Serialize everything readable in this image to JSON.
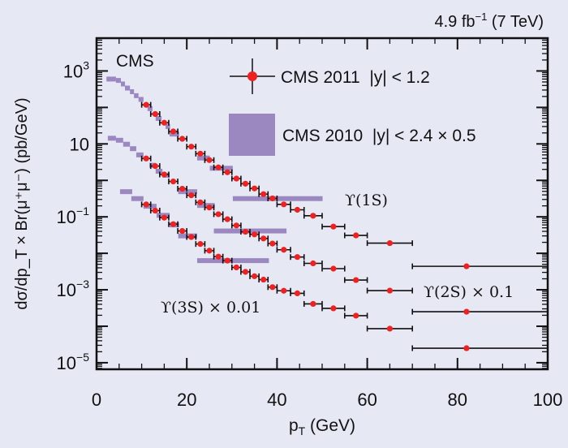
{
  "header": {
    "lumi": "4.9 fb",
    "lumi_exp": "−1",
    "energy": " (7 TeV)"
  },
  "colors": {
    "background": "#e6e8f4",
    "cms2011": "#ee2020",
    "cms2010": "#9b88c0",
    "axis": "#111111"
  },
  "chart_data": {
    "type": "scatter",
    "title": "",
    "experiment_label": "CMS",
    "xlabel": "p",
    "xlabel_sub": "T",
    "xlabel_unit": " (GeV)",
    "ylabel": "dσ/dp_T × Br(μ⁺μ⁻) (pb/GeV)",
    "xlim": [
      0,
      100
    ],
    "ylim_log10": [
      -5.18,
      3.9
    ],
    "yscale": "log",
    "grid": false,
    "legend_placement": "top-center",
    "x_ticks": [
      "0",
      "20",
      "40",
      "60",
      "80",
      "100"
    ],
    "x_tick_values": [
      0,
      20,
      40,
      60,
      80,
      100
    ],
    "y_ticks": [
      {
        "base": "10",
        "exp": "3",
        "value_log10": 3
      },
      {
        "base": "10",
        "exp": "",
        "value_log10": 1
      },
      {
        "base": "10",
        "exp": "−1",
        "value_log10": -1
      },
      {
        "base": "10",
        "exp": "−3",
        "value_log10": -3
      },
      {
        "base": "10",
        "exp": "−5",
        "value_log10": -5
      }
    ],
    "legend": [
      {
        "label": "CMS 2011  |y| < 1.2",
        "style": "points"
      },
      {
        "label": "CMS 2010  |y| < 2.4 × 0.5",
        "style": "box"
      }
    ],
    "annotations": {
      "s1": "ϒ(1S)",
      "s2": "ϒ(2S) × 0.1",
      "s3": "ϒ(3S) × 0.01"
    },
    "bins_2011": [
      [
        10,
        12
      ],
      [
        12,
        14
      ],
      [
        14,
        16
      ],
      [
        16,
        18
      ],
      [
        18,
        20
      ],
      [
        20,
        22
      ],
      [
        22,
        24
      ],
      [
        24,
        26
      ],
      [
        26,
        28
      ],
      [
        28,
        30
      ],
      [
        30,
        32
      ],
      [
        32,
        34
      ],
      [
        34,
        36
      ],
      [
        36,
        38
      ],
      [
        38,
        40
      ],
      [
        40,
        43
      ],
      [
        43,
        46
      ],
      [
        46,
        50
      ],
      [
        50,
        55
      ],
      [
        55,
        60
      ],
      [
        60,
        70
      ],
      [
        70,
        100
      ]
    ],
    "x_2011": [
      11,
      13,
      15,
      17,
      19,
      21,
      23,
      25,
      27,
      29,
      31,
      33,
      35,
      37,
      39,
      41.5,
      44.5,
      48,
      52.5,
      57.5,
      65,
      82
    ],
    "series_2011": [
      {
        "name": "Upsilon(1S)",
        "values": [
          118,
          66,
          38,
          22,
          13.8,
          8.4,
          5.4,
          3.6,
          2.27,
          1.67,
          1.12,
          0.81,
          0.6,
          0.42,
          0.32,
          0.22,
          0.156,
          0.107,
          0.054,
          0.031,
          0.019,
          0.0044
        ]
      },
      {
        "name": "Upsilon(2S) x 0.1",
        "values": [
          3.98,
          2.47,
          1.45,
          0.935,
          0.59,
          0.39,
          0.25,
          0.18,
          0.118,
          0.086,
          0.058,
          0.039,
          0.033,
          0.0255,
          0.0185,
          0.0125,
          0.0079,
          0.0053,
          0.0038,
          0.00185,
          0.00095,
          0.00025
        ]
      },
      {
        "name": "Upsilon(3S) x 0.01",
        "values": [
          0.219,
          0.148,
          0.095,
          0.063,
          0.041,
          0.028,
          0.018,
          0.0118,
          0.0081,
          0.0063,
          0.0041,
          0.0031,
          0.00235,
          0.0019,
          0.00118,
          0.00094,
          0.0008,
          0.00041,
          0.00031,
          0.000195,
          8.6e-05,
          2.5e-05
        ]
      }
    ],
    "series_2010": [
      {
        "name": "Upsilon(1S) 2010",
        "boxes": [
          [
            2.2,
            4.3,
            600
          ],
          [
            4.3,
            5.4,
            550
          ],
          [
            5.4,
            6.3,
            440
          ],
          [
            6.3,
            7.4,
            340
          ],
          [
            7.4,
            8.3,
            270
          ],
          [
            8.3,
            9.3,
            210
          ],
          [
            9.3,
            10.4,
            166
          ],
          [
            11.3,
            12.4,
            93
          ],
          [
            13.1,
            14.4,
            50
          ],
          [
            15.3,
            16.3,
            30
          ],
          [
            16.2,
            18.3,
            18.6
          ],
          [
            22.3,
            25.1,
            4.1
          ],
          [
            25.1,
            30.2,
            2.15
          ],
          [
            30.2,
            50.1,
            0.316
          ]
        ]
      },
      {
        "name": "Upsilon(2S) 2010",
        "boxes": [
          [
            2.5,
            4.3,
            14.3
          ],
          [
            4.3,
            5.9,
            12.6
          ],
          [
            5.9,
            7.4,
            9.8
          ],
          [
            7.4,
            8.8,
            7.4
          ],
          [
            8.8,
            10.4,
            5.0
          ],
          [
            11.7,
            13.1,
            2.6
          ],
          [
            13.1,
            14.6,
            1.78
          ],
          [
            14.6,
            16.2,
            1.38
          ],
          [
            18.1,
            22.3,
            0.49
          ],
          [
            22.3,
            26.2,
            0.205
          ],
          [
            26.0,
            42.1,
            0.041
          ]
        ]
      },
      {
        "name": "Upsilon(3S) 2010",
        "boxes": [
          [
            5.2,
            7.9,
            0.49
          ],
          [
            7.7,
            10.4,
            0.316
          ],
          [
            10.4,
            13.3,
            0.195
          ],
          [
            13.3,
            16.2,
            0.11
          ],
          [
            16.2,
            18.3,
            0.06
          ],
          [
            18.1,
            22.3,
            0.03
          ],
          [
            22.3,
            38.2,
            0.0063
          ]
        ]
      }
    ]
  }
}
